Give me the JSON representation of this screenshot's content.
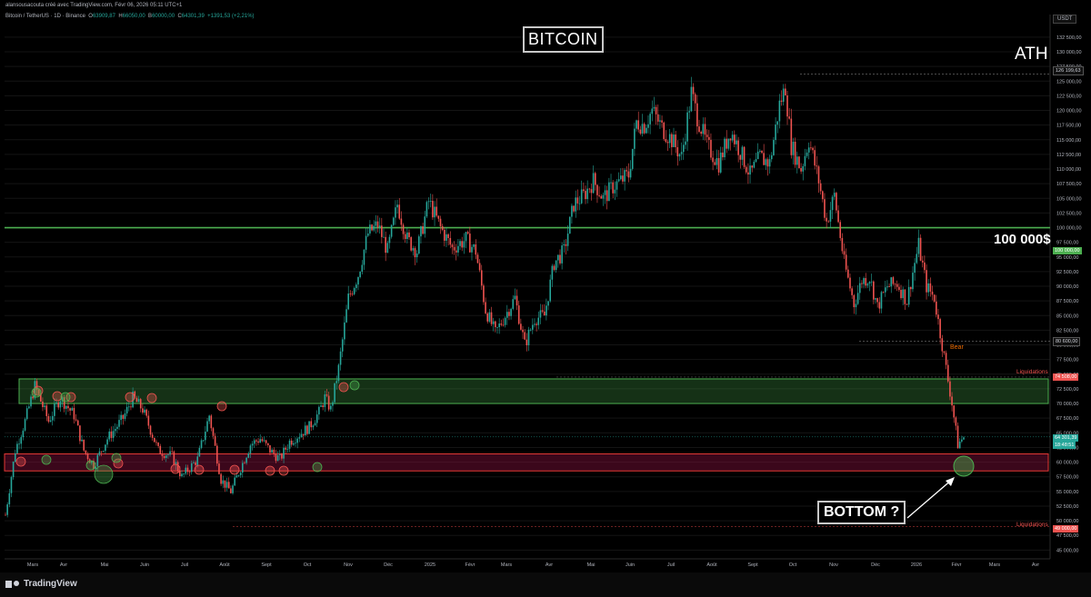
{
  "header": {
    "credit": "alansousacouta créé avec TradingView.com, Févr 06, 2026 05:11 UTC+1",
    "symbol": "Bitcoin / TetherUS · 1D · Binance",
    "ohlc_o_label": "O",
    "ohlc_o": "63909,87",
    "ohlc_h_label": "H",
    "ohlc_h": "66050,00",
    "ohlc_b_label": "B",
    "ohlc_b": "60000,00",
    "ohlc_c_label": "C",
    "ohlc_c": "64301,39",
    "ohlc_change": "+1391,53 (+2,21%)"
  },
  "currency_button": "USDT",
  "branding": {
    "logo_text": "TradingView",
    "logo_icon": "tradingview-logo-icon"
  },
  "annotations": {
    "title": "BITCOIN",
    "ath": "ATH",
    "level_100k": "100 000$",
    "bottom": "BOTTOM ?",
    "bear": "Bear",
    "liquidations_upper": "Liquidations",
    "liquidations_lower": "Liquidations"
  },
  "price_tags": {
    "ath_price": "126 199,63",
    "level_100k": "100 000,00",
    "level_80k": "80 600,00",
    "liq_upper": "74 508,00",
    "current": "64 301,39",
    "countdown": "18:48:51",
    "liq_lower": "49 000,00"
  },
  "colors": {
    "up": "#26a69a",
    "down": "#ef5350",
    "green_zone": "#4caf50",
    "red_zone": "#c2185b",
    "level_line": "#4caf50"
  },
  "chart_data": {
    "type": "candlestick",
    "title": "BITCOIN",
    "ylim": [
      43500,
      134500
    ],
    "y_ticks": [
      "132 500,00",
      "130 000,00",
      "127 500,00",
      "125 000,00",
      "122 500,00",
      "120 000,00",
      "117 500,00",
      "115 000,00",
      "112 500,00",
      "110 000,00",
      "107 500,00",
      "105 000,00",
      "102 500,00",
      "100 000,00",
      "97 500,00",
      "95 000,00",
      "92 500,00",
      "90 000,00",
      "87 500,00",
      "85 000,00",
      "82 500,00",
      "80 000,00",
      "77 500,00",
      "75 000,00",
      "72 500,00",
      "70 000,00",
      "67 500,00",
      "65 000,00",
      "62 500,00",
      "60 000,00",
      "57 500,00",
      "55 000,00",
      "52 500,00",
      "50 000,00",
      "47 500,00",
      "45 000,00"
    ],
    "x_ticks": [
      "Mars",
      "Avr",
      "Mai",
      "Juin",
      "Juil",
      "Août",
      "Sept",
      "Oct",
      "Nov",
      "Déc",
      "2025",
      "Févr",
      "Mars",
      "Avr",
      "Mai",
      "Juin",
      "Juil",
      "Août",
      "Sept",
      "Oct",
      "Nov",
      "Déc",
      "2026",
      "Févr",
      "Mars",
      "Avr"
    ],
    "price_path": [
      [
        0,
        51000
      ],
      [
        5,
        62000
      ],
      [
        10,
        67000
      ],
      [
        15,
        73000
      ],
      [
        22,
        67000
      ],
      [
        28,
        71000
      ],
      [
        35,
        68000
      ],
      [
        40,
        62000
      ],
      [
        45,
        59500
      ],
      [
        52,
        64000
      ],
      [
        60,
        67500
      ],
      [
        65,
        71000
      ],
      [
        70,
        69000
      ],
      [
        78,
        62000
      ],
      [
        85,
        61000
      ],
      [
        90,
        57500
      ],
      [
        98,
        60500
      ],
      [
        104,
        68000
      ],
      [
        110,
        57000
      ],
      [
        115,
        55000
      ],
      [
        120,
        59000
      ],
      [
        125,
        63000
      ],
      [
        130,
        64000
      ],
      [
        135,
        62000
      ],
      [
        140,
        60500
      ],
      [
        145,
        63500
      ],
      [
        155,
        66000
      ],
      [
        160,
        68500
      ],
      [
        163,
        71000
      ],
      [
        166,
        69000
      ],
      [
        170,
        76000
      ],
      [
        175,
        88000
      ],
      [
        180,
        92000
      ],
      [
        185,
        99000
      ],
      [
        190,
        100500
      ],
      [
        195,
        96000
      ],
      [
        200,
        104000
      ],
      [
        205,
        98000
      ],
      [
        210,
        96000
      ],
      [
        216,
        104500
      ],
      [
        222,
        100000
      ],
      [
        228,
        96500
      ],
      [
        235,
        98000
      ],
      [
        240,
        96000
      ],
      [
        245,
        86000
      ],
      [
        250,
        82000
      ],
      [
        255,
        85000
      ],
      [
        260,
        88000
      ],
      [
        265,
        80000
      ],
      [
        270,
        84500
      ],
      [
        275,
        85000
      ],
      [
        280,
        94000
      ],
      [
        285,
        96000
      ],
      [
        290,
        104000
      ],
      [
        295,
        105500
      ],
      [
        300,
        108000
      ],
      [
        305,
        105000
      ],
      [
        310,
        107000
      ],
      [
        318,
        109000
      ],
      [
        322,
        118000
      ],
      [
        326,
        117500
      ],
      [
        330,
        120000
      ],
      [
        335,
        117000
      ],
      [
        340,
        115000
      ],
      [
        345,
        112000
      ],
      [
        350,
        123000
      ],
      [
        353,
        119000
      ],
      [
        358,
        114000
      ],
      [
        364,
        111000
      ],
      [
        370,
        116500
      ],
      [
        375,
        113000
      ],
      [
        380,
        109000
      ],
      [
        385,
        112000
      ],
      [
        390,
        111000
      ],
      [
        395,
        121000
      ],
      [
        398,
        124000
      ],
      [
        401,
        114000
      ],
      [
        406,
        110000
      ],
      [
        410,
        115000
      ],
      [
        415,
        108000
      ],
      [
        419,
        101000
      ],
      [
        423,
        105500
      ],
      [
        428,
        94000
      ],
      [
        433,
        87000
      ],
      [
        437,
        91000
      ],
      [
        441,
        91500
      ],
      [
        445,
        86500
      ],
      [
        450,
        90000
      ],
      [
        455,
        90500
      ],
      [
        460,
        87500
      ],
      [
        464,
        94000
      ],
      [
        466,
        97000
      ],
      [
        470,
        90000
      ],
      [
        474,
        88000
      ],
      [
        477,
        82000
      ],
      [
        480,
        76000
      ],
      [
        483,
        70000
      ],
      [
        486,
        63000
      ],
      [
        489,
        64300
      ]
    ],
    "ath": 126199.63,
    "levels": {
      "key_level": 100000,
      "level_80k": 80600,
      "liq_upper": 74508,
      "liq_lower": 49000,
      "current": 64301.39
    },
    "zones": {
      "green_zone": [
        70000,
        74200
      ],
      "red_zone": [
        58500,
        61400
      ]
    }
  }
}
